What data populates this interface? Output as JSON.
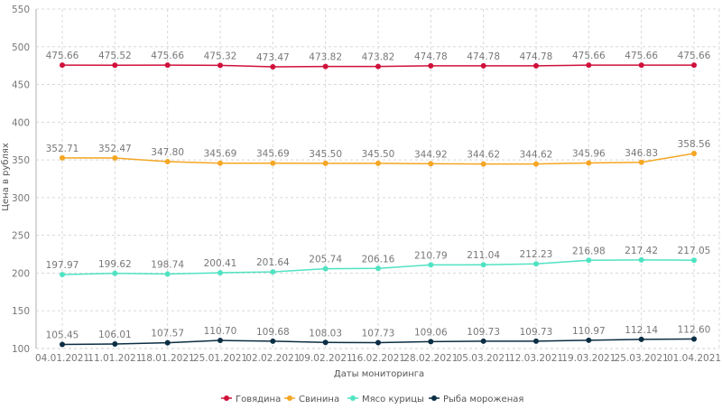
{
  "chart_data": {
    "type": "line",
    "title": "",
    "xlabel": "Даты мониторинга",
    "ylabel": "Цена в рублях",
    "ylim": [
      100,
      550
    ],
    "yticks": [
      100,
      150,
      200,
      250,
      300,
      350,
      400,
      450,
      500,
      550
    ],
    "grid": true,
    "legend_position": "bottom-center",
    "categories": [
      "04.01.2021",
      "11.01.2021",
      "18.01.2021",
      "25.01.2021",
      "02.02.2021",
      "09.02.2021",
      "16.02.2021",
      "28.02.2021",
      "05.03.2021",
      "12.03.2021",
      "19.03.2021",
      "25.03.2021",
      "01.04.2021"
    ],
    "series": [
      {
        "name": "Говядина",
        "color": "#d0103a",
        "values": [
          475.66,
          475.52,
          475.66,
          475.32,
          473.47,
          473.82,
          473.82,
          474.78,
          474.78,
          474.78,
          475.66,
          475.66,
          475.66
        ]
      },
      {
        "name": "Свинина",
        "color": "#f5a623",
        "values": [
          352.71,
          352.47,
          347.8,
          345.69,
          345.69,
          345.5,
          345.5,
          344.92,
          344.62,
          344.62,
          345.96,
          346.83,
          358.56
        ]
      },
      {
        "name": "Мясо курицы",
        "color": "#50e3c2",
        "values": [
          197.97,
          199.62,
          198.74,
          200.41,
          201.64,
          205.74,
          206.16,
          210.79,
          211.04,
          212.23,
          216.98,
          217.42,
          217.05
        ]
      },
      {
        "name": "Рыба мороженая",
        "color": "#0b2e44",
        "values": [
          105.45,
          106.01,
          107.57,
          110.7,
          109.68,
          108.03,
          107.73,
          109.06,
          109.73,
          109.73,
          110.97,
          112.14,
          112.6
        ]
      }
    ]
  }
}
